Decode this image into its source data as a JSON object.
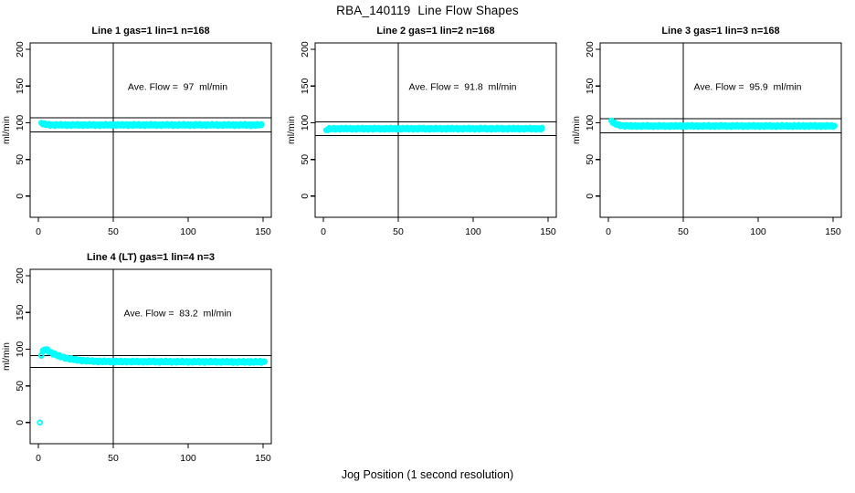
{
  "figure": {
    "title": "RBA_140119  Line Flow Shapes",
    "xlabel": "Jog Position (1 second resolution)"
  },
  "colors": {
    "points": "#00FFFF",
    "axis": "#000000",
    "background": "#FFFFFF"
  },
  "chart_data": [
    {
      "type": "scatter",
      "title": "Line 1 gas=1 lin=1 n=168",
      "annotation": "Ave. Flow =  97  ml/min",
      "ave_flow": 97,
      "ylabel": "ml/min",
      "xticks": [
        0,
        50,
        100,
        150
      ],
      "yticks": [
        0,
        50,
        100,
        150,
        200
      ],
      "x_range": [
        -5.5,
        155.5
      ],
      "y_range": [
        -28.8,
        208.8
      ],
      "grid": false,
      "ref_vline_x": 50,
      "ref_hlines": [
        106.7,
        87.3
      ],
      "x_start": 2,
      "x_step": 1,
      "y": [
        100,
        98.8,
        98.1,
        97.7,
        97.4,
        97.2,
        97.1,
        97.1,
        97,
        97,
        97,
        97,
        97,
        97,
        97,
        97,
        97,
        97,
        97,
        97,
        97,
        97,
        97,
        97,
        97,
        97,
        97,
        97,
        97,
        97,
        97,
        97,
        97,
        97,
        97,
        97,
        97,
        97,
        97,
        97,
        97,
        97,
        97,
        97,
        97,
        97,
        97,
        97,
        97,
        97,
        97,
        97,
        97,
        97,
        97,
        97,
        97,
        97,
        97,
        97,
        97,
        97,
        97,
        97,
        97,
        97,
        97,
        97,
        97,
        97,
        97,
        97,
        97,
        97,
        97,
        97,
        97,
        97,
        97,
        97,
        97,
        97,
        97,
        97,
        97,
        97,
        97,
        97,
        97,
        97,
        97,
        97,
        97,
        97,
        97,
        97,
        97,
        97,
        97,
        97,
        97,
        97,
        97,
        97,
        97,
        97,
        97,
        97,
        97,
        97,
        97,
        97,
        97,
        97,
        97,
        97,
        97,
        97,
        97,
        97,
        97,
        97,
        97,
        97,
        97,
        97,
        97,
        97,
        97,
        97,
        97,
        97,
        97,
        97,
        97,
        97,
        97,
        97,
        97,
        97,
        97,
        97,
        97,
        97,
        97,
        97,
        97,
        97
      ]
    },
    {
      "type": "scatter",
      "title": "Line 2 gas=1 lin=2 n=168",
      "annotation": "Ave. Flow =  91.8  ml/min",
      "ave_flow": 91.8,
      "ylabel": "ml/min",
      "xticks": [
        0,
        50,
        100,
        150
      ],
      "yticks": [
        0,
        50,
        100,
        150,
        200
      ],
      "x_range": [
        -5.5,
        155.5
      ],
      "y_range": [
        -28.8,
        208.8
      ],
      "grid": false,
      "ref_vline_x": 50,
      "ref_hlines": [
        101.0,
        82.6
      ],
      "x_start": 2,
      "x_step": 1,
      "y": [
        90,
        91,
        91.5,
        91.7,
        91.8,
        91.9,
        91.9,
        91.9,
        91.9,
        91.9,
        91.9,
        91.9,
        91.9,
        91.9,
        91.9,
        91.9,
        91.9,
        91.9,
        91.9,
        91.9,
        91.9,
        91.9,
        91.9,
        91.9,
        91.9,
        91.9,
        91.9,
        91.9,
        91.9,
        91.9,
        91.9,
        91.9,
        91.9,
        91.9,
        91.9,
        91.9,
        91.9,
        91.9,
        91.9,
        91.9,
        91.9,
        91.9,
        91.9,
        91.9,
        91.9,
        91.9,
        91.9,
        91.9,
        91.9,
        91.9,
        91.9,
        91.9,
        91.9,
        91.9,
        91.9,
        91.9,
        91.9,
        91.9,
        91.9,
        91.9,
        91.9,
        91.9,
        91.9,
        91.9,
        91.9,
        91.9,
        91.9,
        91.9,
        91.9,
        91.9,
        91.9,
        91.9,
        91.9,
        91.9,
        91.9,
        91.9,
        91.9,
        91.9,
        91.9,
        91.9,
        91.9,
        91.9,
        91.9,
        91.9,
        91.9,
        91.9,
        91.9,
        91.9,
        91.9,
        91.9,
        91.9,
        91.9,
        91.9,
        91.9,
        91.9,
        91.9,
        91.9,
        91.9,
        91.9,
        91.9,
        91.9,
        91.9,
        91.9,
        91.9,
        91.9,
        91.9,
        91.9,
        91.9,
        91.9,
        91.9,
        91.9,
        91.9,
        91.9,
        91.9,
        91.9,
        91.9,
        91.9,
        91.9,
        91.9,
        91.9,
        91.9,
        91.9,
        91.9,
        91.9,
        91.9,
        91.9,
        91.9,
        91.9,
        91.9,
        91.9,
        91.9,
        91.9,
        91.9,
        91.9,
        91.9,
        91.9,
        91.9,
        91.9,
        91.9,
        91.9,
        91.9,
        91.9,
        91.9,
        91.9,
        91.9
      ]
    },
    {
      "type": "scatter",
      "title": "Line 3 gas=1 lin=3 n=168",
      "annotation": "Ave. Flow =  95.9  ml/min",
      "ave_flow": 95.9,
      "ylabel": "ml/min",
      "xticks": [
        0,
        50,
        100,
        150
      ],
      "yticks": [
        0,
        50,
        100,
        150,
        200
      ],
      "x_range": [
        -5.5,
        155.5
      ],
      "y_range": [
        -28.8,
        208.8
      ],
      "grid": false,
      "ref_vline_x": 50,
      "ref_hlines": [
        105.5,
        86.3
      ],
      "x_start": 2,
      "x_step": 1,
      "y": [
        103,
        100.9,
        99.3,
        98.2,
        97.4,
        96.9,
        96.5,
        96.2,
        96,
        95.9,
        95.8,
        95.7,
        95.7,
        95.6,
        95.6,
        95.6,
        95.6,
        95.6,
        95.6,
        95.6,
        95.6,
        95.6,
        95.6,
        95.6,
        95.6,
        95.6,
        95.6,
        95.6,
        95.6,
        95.6,
        95.6,
        95.6,
        95.6,
        95.6,
        95.6,
        95.6,
        95.6,
        95.6,
        95.6,
        95.6,
        95.6,
        95.6,
        95.6,
        95.6,
        95.6,
        95.6,
        95.6,
        95.6,
        95.6,
        95.6,
        95.6,
        95.6,
        95.6,
        95.6,
        95.6,
        95.6,
        95.6,
        95.6,
        95.6,
        95.6,
        95.6,
        95.6,
        95.6,
        95.6,
        95.6,
        95.6,
        95.6,
        95.6,
        95.6,
        95.6,
        95.6,
        95.6,
        95.6,
        95.6,
        95.6,
        95.6,
        95.6,
        95.6,
        95.6,
        95.6,
        95.6,
        95.6,
        95.6,
        95.6,
        95.6,
        95.6,
        95.6,
        95.6,
        95.6,
        95.6,
        95.6,
        95.6,
        95.6,
        95.6,
        95.6,
        95.6,
        95.6,
        95.6,
        95.6,
        95.6,
        95.6,
        95.6,
        95.6,
        95.6,
        95.6,
        95.6,
        95.6,
        95.6,
        95.6,
        95.6,
        95.6,
        95.6,
        95.6,
        95.6,
        95.6,
        95.6,
        95.6,
        95.6,
        95.6,
        95.6,
        95.6,
        95.6,
        95.6,
        95.6,
        95.6,
        95.6,
        95.6,
        95.6,
        95.6,
        95.6,
        95.6,
        95.6,
        95.6,
        95.6,
        95.6,
        95.6,
        95.6,
        95.6,
        95.6,
        95.6,
        95.6,
        95.6,
        95.6,
        95.6,
        95.6,
        95.6,
        95.6,
        95.6,
        95.6,
        95.6
      ]
    },
    {
      "type": "scatter",
      "title": "Line 4 (LT) gas=1 lin=4 n=3",
      "annotation": "Ave. Flow =  83.2  ml/min",
      "ave_flow": 83.2,
      "ylabel": "ml/min",
      "xticks": [
        0,
        50,
        100,
        150
      ],
      "yticks": [
        0,
        50,
        100,
        150,
        200
      ],
      "x_range": [
        -5.5,
        155.5
      ],
      "y_range": [
        -28.8,
        208.8
      ],
      "grid": false,
      "ref_vline_x": 50,
      "ref_hlines": [
        91.5,
        74.9
      ],
      "x_start": 1,
      "x_step": 1,
      "y": [
        0,
        92,
        97,
        99.5,
        100,
        98.5,
        97.2,
        96,
        94.9,
        93.8,
        92.9,
        92,
        91.2,
        90.5,
        89.8,
        89.3,
        88.7,
        88.2,
        87.7,
        87.3,
        86.9,
        86.5,
        86.2,
        85.9,
        85.6,
        85.3,
        85.1,
        84.9,
        84.7,
        84.5,
        84.3,
        84.2,
        84,
        83.9,
        83.8,
        83.7,
        83.6,
        83.6,
        83.5,
        83.4,
        83.4,
        83.3,
        83.3,
        83.3,
        83.2,
        83.2,
        83.2,
        83.2,
        83.1,
        83.1,
        83.1,
        83.1,
        83.1,
        83.1,
        83.1,
        83.1,
        83.1,
        83.1,
        83.1,
        83.1,
        83,
        83,
        83,
        83,
        83,
        83,
        83,
        83,
        83,
        83,
        83,
        83,
        83,
        83,
        83,
        83,
        83,
        83,
        83,
        83,
        82.9,
        82.9,
        82.9,
        82.9,
        82.9,
        82.9,
        82.9,
        82.9,
        82.9,
        82.9,
        82.9,
        82.9,
        82.9,
        82.9,
        82.9,
        82.9,
        82.9,
        82.9,
        82.9,
        82.9,
        82.8,
        82.8,
        82.8,
        82.8,
        82.8,
        82.8,
        82.8,
        82.8,
        82.8,
        82.8,
        82.8,
        82.8,
        82.8,
        82.8,
        82.8,
        82.8,
        82.8,
        82.8,
        82.8,
        82.8,
        82.8,
        82.8,
        82.8,
        82.8,
        82.8,
        82.7,
        82.7,
        82.7,
        82.7,
        82.7,
        82.7,
        82.7,
        82.7,
        82.7,
        82.7,
        82.7,
        82.7,
        82.7,
        82.7,
        82.7,
        82.7,
        82.7,
        82.7,
        82.7,
        82.7,
        82.7,
        82.7,
        82.7,
        82.7,
        82.7,
        82.7
      ]
    }
  ]
}
